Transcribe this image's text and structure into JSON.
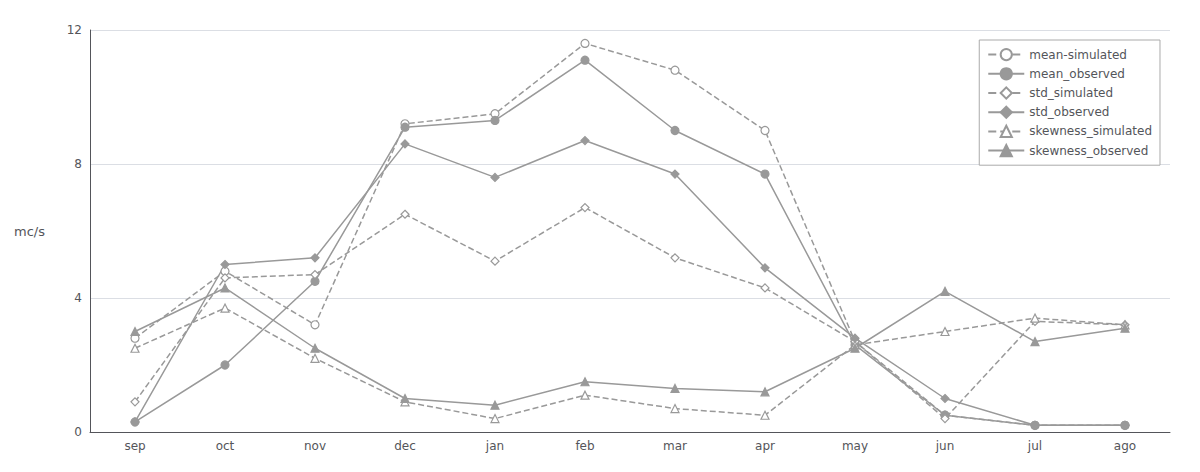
{
  "chart_data": {
    "type": "line",
    "categories": [
      "sep",
      "oct",
      "nov",
      "dec",
      "jan",
      "feb",
      "mar",
      "apr",
      "may",
      "jun",
      "jul",
      "ago"
    ],
    "ylabel": "mc/s",
    "ylim": [
      0,
      12
    ],
    "yticks": [
      0,
      4,
      8,
      12
    ],
    "grid": true,
    "legend": "upper right",
    "series": [
      {
        "name": "mean-simulated",
        "color": "#999999",
        "marker": "circle-open",
        "line_style": "dashed",
        "values": [
          2.8,
          4.8,
          3.2,
          9.2,
          9.5,
          11.6,
          10.8,
          9.0,
          2.7,
          0.5,
          0.2,
          0.2
        ]
      },
      {
        "name": "mean_observed",
        "color": "#999999",
        "marker": "circle",
        "line_style": "solid",
        "values": [
          0.3,
          2.0,
          4.5,
          9.1,
          9.3,
          11.1,
          9.0,
          7.7,
          2.6,
          0.5,
          0.2,
          0.2
        ]
      },
      {
        "name": "std_simulated",
        "color": "#999999",
        "marker": "diamond-open",
        "line_style": "dashed",
        "values": [
          0.9,
          4.6,
          4.7,
          6.5,
          5.1,
          6.7,
          5.2,
          4.3,
          2.7,
          0.4,
          3.3,
          3.2
        ]
      },
      {
        "name": "std_observed",
        "color": "#999999",
        "marker": "diamond",
        "line_style": "solid",
        "values": [
          0.3,
          5.0,
          5.2,
          8.6,
          7.6,
          8.7,
          7.7,
          4.9,
          2.8,
          1.0,
          0.2,
          0.2
        ]
      },
      {
        "name": "skewness_simulated",
        "color": "#999999",
        "marker": "triangle-open",
        "line_style": "dashed",
        "values": [
          2.5,
          3.7,
          2.2,
          0.9,
          0.4,
          1.1,
          0.7,
          0.5,
          2.6,
          3.0,
          3.4,
          3.2
        ]
      },
      {
        "name": "skewness_observed",
        "color": "#999999",
        "marker": "triangle",
        "line_style": "solid",
        "values": [
          3.0,
          4.3,
          2.5,
          1.0,
          0.8,
          1.5,
          1.3,
          1.2,
          2.5,
          4.2,
          2.7,
          3.1
        ]
      }
    ]
  }
}
